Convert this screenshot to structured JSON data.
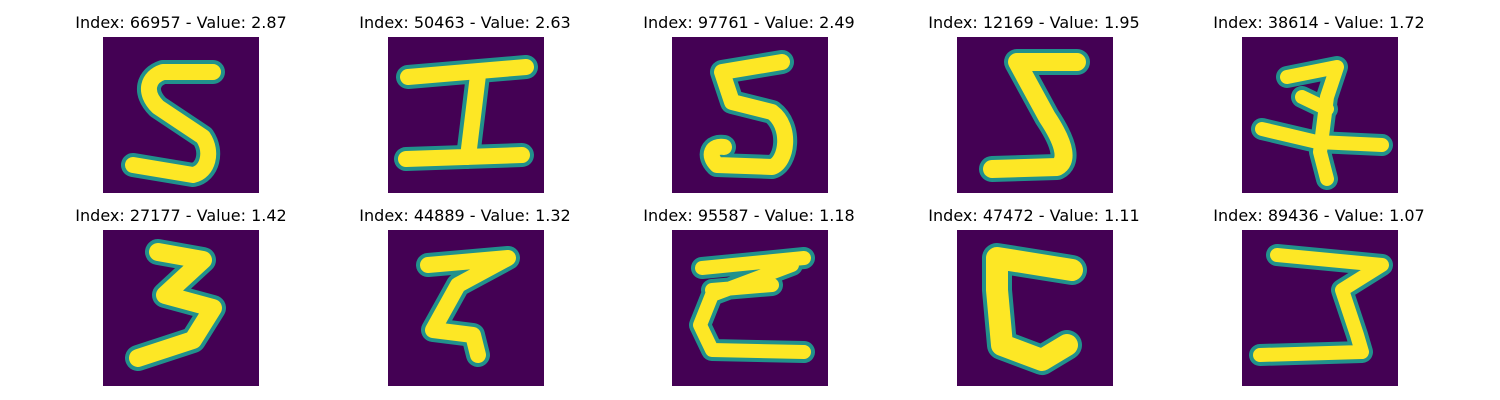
{
  "colors": {
    "background": "#440154",
    "edge": "#21918c",
    "stroke": "#fde725"
  },
  "panels": [
    {
      "title": "Index: 66957 - Value: 2.87",
      "digit": "S-like glyph"
    },
    {
      "title": "Index: 50463 - Value: 2.63",
      "digit": "I-like glyph"
    },
    {
      "title": "Index: 97761 - Value: 2.49",
      "digit": "J-like glyph"
    },
    {
      "title": "Index: 12169 - Value: 1.95",
      "digit": "Z-like glyph"
    },
    {
      "title": "Index: 38614 - Value: 1.72",
      "digit": "crossed glyph"
    },
    {
      "title": "Index: 27177 - Value: 1.42",
      "digit": "3-like glyph"
    },
    {
      "title": "Index: 44889 - Value: 1.32",
      "digit": "Z-like glyph"
    },
    {
      "title": "Index: 95587 - Value: 1.18",
      "digit": "Z-like glyph"
    },
    {
      "title": "Index: 47472 - Value: 1.11",
      "digit": "C-like glyph"
    },
    {
      "title": "Index: 89436 - Value: 1.07",
      "digit": "Z-like glyph"
    }
  ]
}
